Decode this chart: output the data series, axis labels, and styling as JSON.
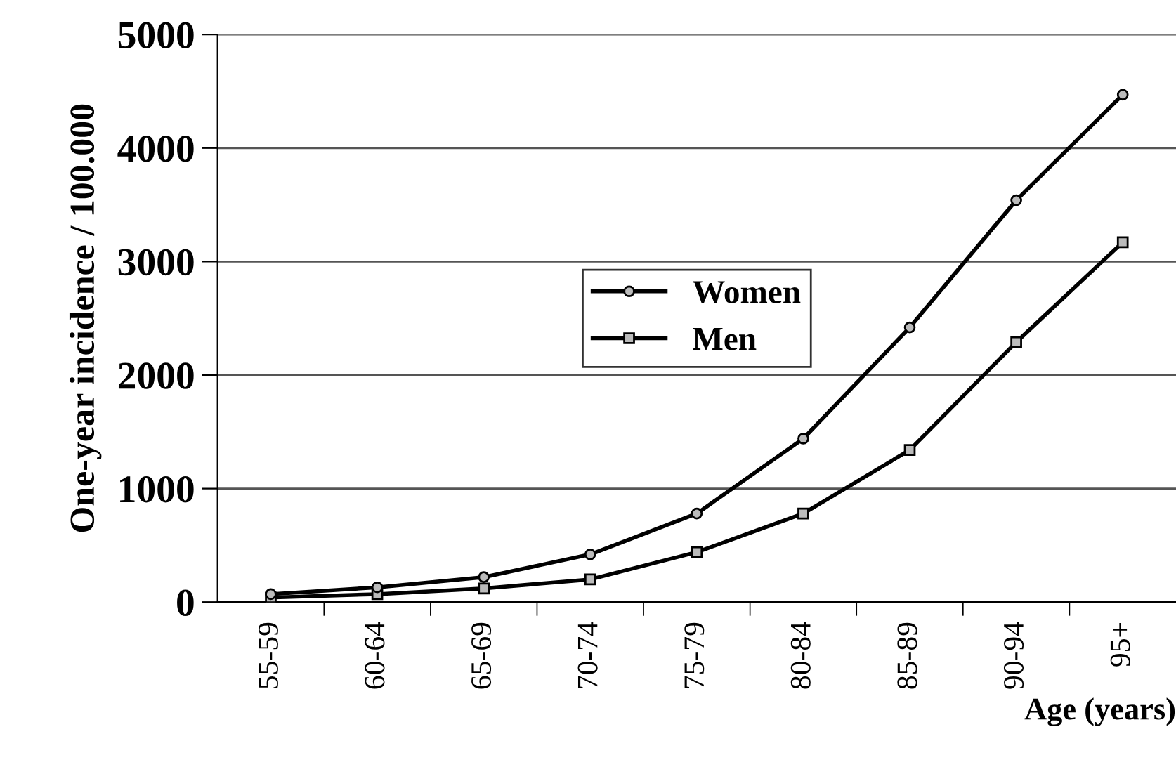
{
  "chart_data": {
    "type": "line",
    "xlabel": "Age (years)",
    "ylabel": "One-year incidence / 100.000",
    "categories": [
      "55-59",
      "60-64",
      "65-69",
      "70-74",
      "75-79",
      "80-84",
      "85-89",
      "90-94",
      "95+"
    ],
    "series": [
      {
        "name": "Women",
        "color": "#000000",
        "marker": "circle",
        "values": [
          70,
          130,
          220,
          420,
          780,
          1440,
          2420,
          3540,
          4470
        ]
      },
      {
        "name": "Men",
        "color": "#000000",
        "marker": "square",
        "values": [
          40,
          70,
          120,
          200,
          440,
          780,
          1340,
          2290,
          3170
        ]
      }
    ],
    "ylim": [
      0,
      5000
    ],
    "yticks": [
      0,
      1000,
      2000,
      3000,
      4000,
      5000
    ],
    "grid": "y",
    "legend": "center",
    "line_style": "solid"
  }
}
